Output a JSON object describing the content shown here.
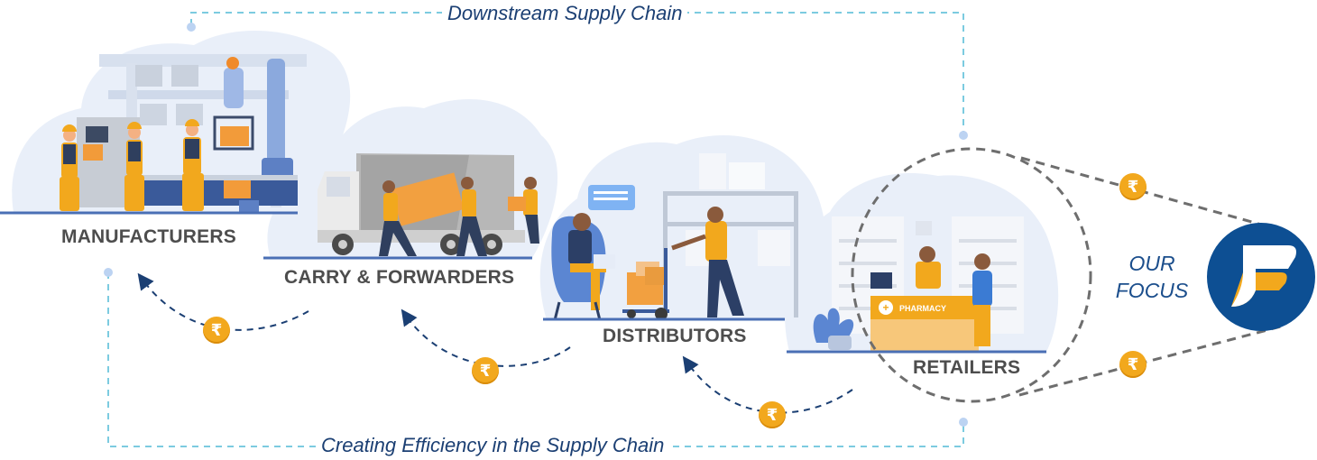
{
  "top_title": "Downstream Supply Chain",
  "bottom_title": "Creating Efficiency in the Supply Chain",
  "stages": {
    "manufacturers": "MANUFACTURERS",
    "carry_forwarders": "CARRY & FORWARDERS",
    "distributors": "DISTRIBUTORS",
    "retailers": "RETAILERS"
  },
  "pharmacy_sign": "PHARMACY",
  "focus": {
    "line1": "OUR",
    "line2": "FOCUS"
  },
  "currency_symbol": "₹",
  "colors": {
    "accent_blue": "#1b3f73",
    "dashed_line": "#7ccbe0",
    "coin": "#f2a81d",
    "blob": "#e9eff9",
    "logo_bg": "#0d4f93"
  },
  "icons": [
    "factory-illustration",
    "truck-illustration",
    "warehouse-illustration",
    "pharmacy-illustration",
    "rupee-coin-icon",
    "company-logo-icon"
  ]
}
